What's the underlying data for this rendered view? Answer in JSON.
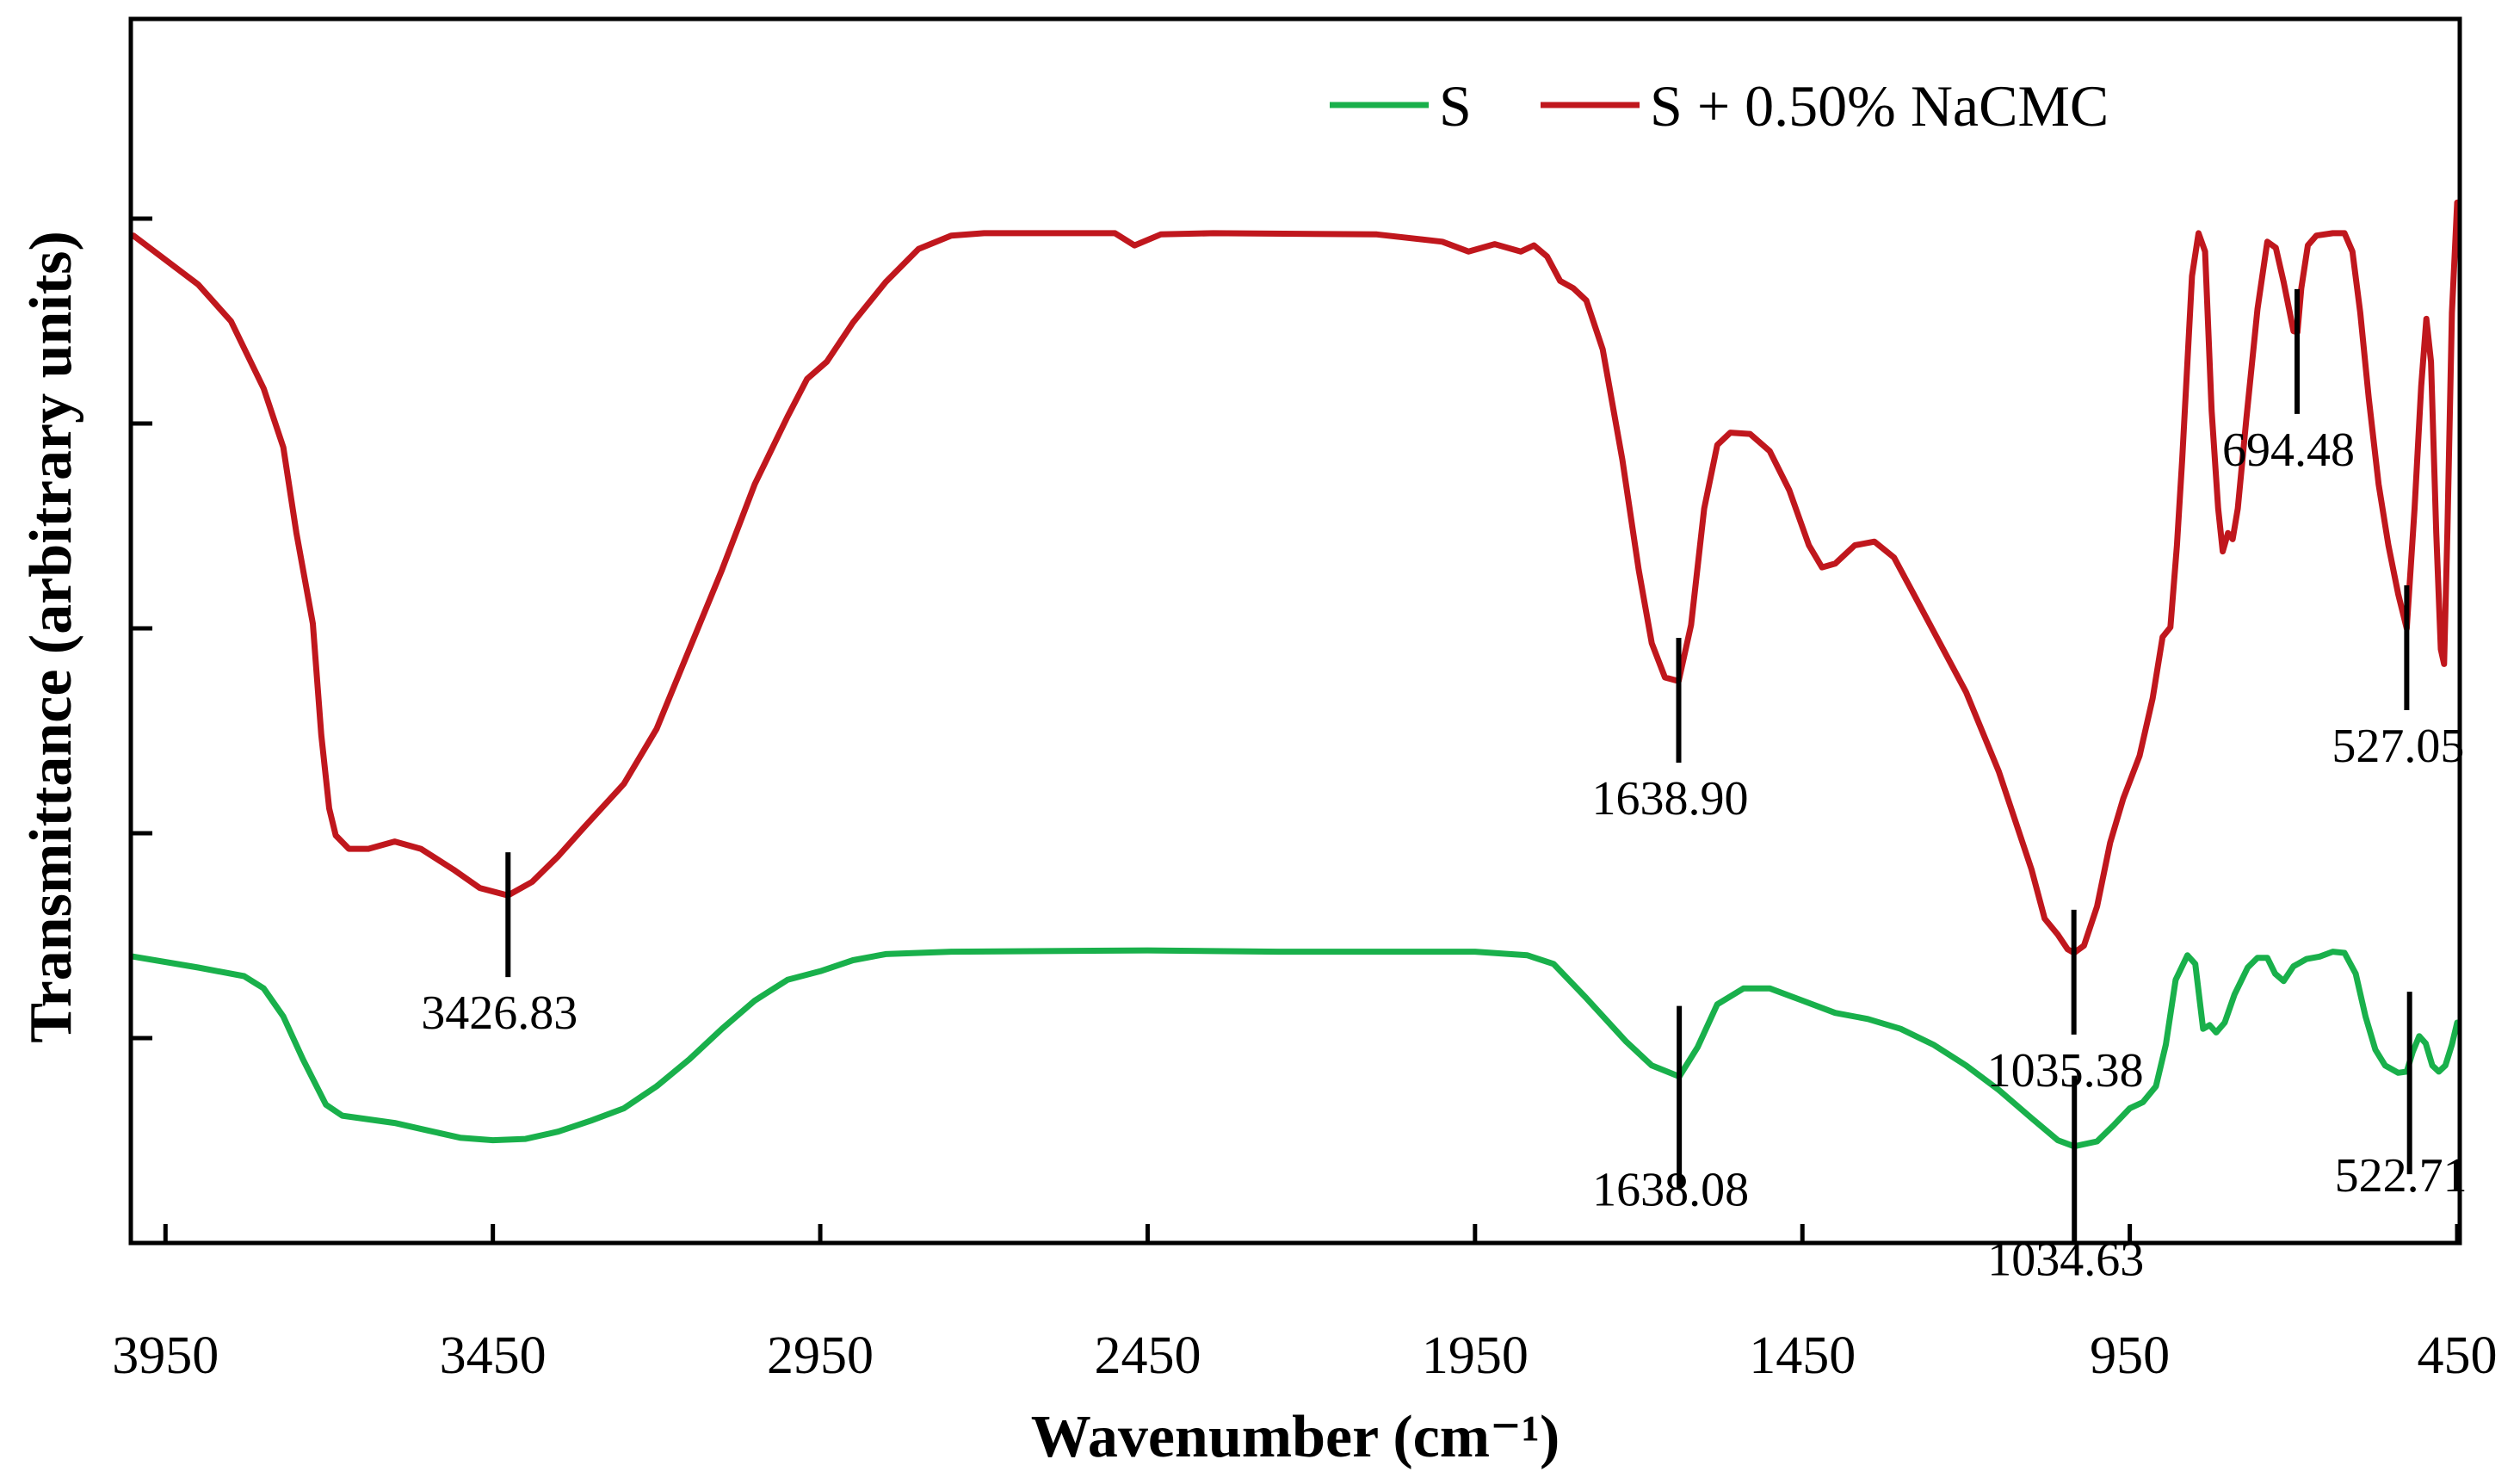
{
  "chart_data": {
    "type": "line",
    "title": "",
    "xlabel": "Wavenumber (cm⁻¹)",
    "ylabel": "Transmittance (arbitrary units)",
    "xlim": [
      3999,
      450
    ],
    "xaxis_reversed": true,
    "x_ticks": [
      "3950",
      "3450",
      "2950",
      "2450",
      "1950",
      "1450",
      "950",
      "450"
    ],
    "y_tick_count": 5,
    "ylim": [
      0,
      100
    ],
    "grid": false,
    "legend_position": "top-right",
    "series": [
      {
        "name": "S",
        "color": "#19b04b",
        "points": [
          [
            3999,
            23.4
          ],
          [
            3900,
            22.5
          ],
          [
            3830,
            21.8
          ],
          [
            3800,
            20.8
          ],
          [
            3770,
            18.5
          ],
          [
            3740,
            15.0
          ],
          [
            3705,
            11.3
          ],
          [
            3680,
            10.4
          ],
          [
            3600,
            9.8
          ],
          [
            3550,
            9.2
          ],
          [
            3500,
            8.6
          ],
          [
            3450,
            8.4
          ],
          [
            3400,
            8.5
          ],
          [
            3350,
            9.1
          ],
          [
            3300,
            10.0
          ],
          [
            3250,
            11.0
          ],
          [
            3200,
            12.8
          ],
          [
            3150,
            15.0
          ],
          [
            3100,
            17.5
          ],
          [
            3050,
            19.8
          ],
          [
            3000,
            21.5
          ],
          [
            2950,
            22.2
          ],
          [
            2900,
            23.1
          ],
          [
            2850,
            23.6
          ],
          [
            2750,
            23.8
          ],
          [
            2450,
            23.9
          ],
          [
            2250,
            23.8
          ],
          [
            2050,
            23.8
          ],
          [
            1950,
            23.8
          ],
          [
            1870,
            23.5
          ],
          [
            1830,
            22.8
          ],
          [
            1780,
            20.0
          ],
          [
            1720,
            16.5
          ],
          [
            1680,
            14.5
          ],
          [
            1638,
            13.6
          ],
          [
            1610,
            16.0
          ],
          [
            1580,
            19.5
          ],
          [
            1540,
            20.8
          ],
          [
            1500,
            20.8
          ],
          [
            1450,
            19.8
          ],
          [
            1400,
            18.8
          ],
          [
            1350,
            18.3
          ],
          [
            1300,
            17.5
          ],
          [
            1250,
            16.2
          ],
          [
            1200,
            14.5
          ],
          [
            1150,
            12.5
          ],
          [
            1100,
            10.2
          ],
          [
            1060,
            8.4
          ],
          [
            1035,
            7.9
          ],
          [
            1000,
            8.3
          ],
          [
            975,
            9.6
          ],
          [
            950,
            11.0
          ],
          [
            930,
            11.5
          ],
          [
            910,
            12.8
          ],
          [
            895,
            16.2
          ],
          [
            880,
            21.5
          ],
          [
            862,
            23.5
          ],
          [
            850,
            22.8
          ],
          [
            838,
            17.5
          ],
          [
            828,
            17.8
          ],
          [
            818,
            17.2
          ],
          [
            805,
            18.0
          ],
          [
            790,
            20.3
          ],
          [
            770,
            22.5
          ],
          [
            755,
            23.3
          ],
          [
            740,
            23.3
          ],
          [
            728,
            22.0
          ],
          [
            715,
            21.4
          ],
          [
            700,
            22.6
          ],
          [
            680,
            23.2
          ],
          [
            660,
            23.4
          ],
          [
            640,
            23.8
          ],
          [
            622,
            23.7
          ],
          [
            605,
            22.0
          ],
          [
            590,
            18.5
          ],
          [
            575,
            15.8
          ],
          [
            560,
            14.5
          ],
          [
            540,
            13.9
          ],
          [
            527,
            14.0
          ],
          [
            518,
            15.6
          ],
          [
            508,
            16.9
          ],
          [
            498,
            16.3
          ],
          [
            488,
            14.5
          ],
          [
            478,
            14.0
          ],
          [
            468,
            14.5
          ],
          [
            458,
            16.2
          ],
          [
            450,
            18.0
          ]
        ]
      },
      {
        "name": "S + 0.50% NaCMC",
        "color": "#c0171d",
        "points": [
          [
            3999,
            82.3
          ],
          [
            3900,
            78.3
          ],
          [
            3850,
            75.3
          ],
          [
            3800,
            69.8
          ],
          [
            3770,
            65.0
          ],
          [
            3750,
            58.0
          ],
          [
            3725,
            50.6
          ],
          [
            3712,
            41.5
          ],
          [
            3700,
            35.5
          ],
          [
            3690,
            33.3
          ],
          [
            3670,
            32.2
          ],
          [
            3640,
            32.2
          ],
          [
            3600,
            32.8
          ],
          [
            3560,
            32.2
          ],
          [
            3510,
            30.5
          ],
          [
            3470,
            29.0
          ],
          [
            3427,
            28.4
          ],
          [
            3390,
            29.5
          ],
          [
            3350,
            31.6
          ],
          [
            3310,
            34.0
          ],
          [
            3250,
            37.5
          ],
          [
            3200,
            42.0
          ],
          [
            3150,
            48.5
          ],
          [
            3100,
            55.0
          ],
          [
            3050,
            62.0
          ],
          [
            3000,
            67.5
          ],
          [
            2970,
            70.6
          ],
          [
            2940,
            72.0
          ],
          [
            2900,
            75.2
          ],
          [
            2850,
            78.5
          ],
          [
            2800,
            81.2
          ],
          [
            2750,
            82.3
          ],
          [
            2700,
            82.5
          ],
          [
            2600,
            82.5
          ],
          [
            2500,
            82.5
          ],
          [
            2470,
            81.5
          ],
          [
            2430,
            82.4
          ],
          [
            2350,
            82.5
          ],
          [
            2100,
            82.4
          ],
          [
            2000,
            81.8
          ],
          [
            1960,
            81.0
          ],
          [
            1920,
            81.6
          ],
          [
            1880,
            81.0
          ],
          [
            1860,
            81.5
          ],
          [
            1840,
            80.6
          ],
          [
            1820,
            78.6
          ],
          [
            1800,
            78.0
          ],
          [
            1780,
            77.0
          ],
          [
            1755,
            73.0
          ],
          [
            1725,
            64.0
          ],
          [
            1700,
            55.0
          ],
          [
            1680,
            49.0
          ],
          [
            1660,
            46.2
          ],
          [
            1639,
            45.9
          ],
          [
            1620,
            50.5
          ],
          [
            1600,
            60.0
          ],
          [
            1580,
            65.2
          ],
          [
            1560,
            66.2
          ],
          [
            1530,
            66.1
          ],
          [
            1500,
            64.7
          ],
          [
            1470,
            61.5
          ],
          [
            1440,
            57.0
          ],
          [
            1420,
            55.2
          ],
          [
            1400,
            55.5
          ],
          [
            1370,
            57.0
          ],
          [
            1340,
            57.3
          ],
          [
            1310,
            56.0
          ],
          [
            1280,
            53.0
          ],
          [
            1250,
            50.0
          ],
          [
            1200,
            45.0
          ],
          [
            1150,
            38.5
          ],
          [
            1100,
            30.5
          ],
          [
            1080,
            26.5
          ],
          [
            1060,
            25.2
          ],
          [
            1045,
            24.0
          ],
          [
            1035,
            23.7
          ],
          [
            1020,
            24.3
          ],
          [
            1000,
            27.5
          ],
          [
            980,
            32.7
          ],
          [
            960,
            36.3
          ],
          [
            935,
            39.8
          ],
          [
            915,
            44.5
          ],
          [
            900,
            49.5
          ],
          [
            888,
            50.3
          ],
          [
            878,
            57.0
          ],
          [
            870,
            64.0
          ],
          [
            862,
            72.0
          ],
          [
            855,
            79.0
          ],
          [
            845,
            82.5
          ],
          [
            835,
            81.0
          ],
          [
            825,
            68.0
          ],
          [
            815,
            60.0
          ],
          [
            808,
            56.5
          ],
          [
            800,
            58.0
          ],
          [
            793,
            57.5
          ],
          [
            785,
            60.0
          ],
          [
            772,
            67.3
          ],
          [
            755,
            76.3
          ],
          [
            740,
            81.8
          ],
          [
            727,
            81.3
          ],
          [
            715,
            78.5
          ],
          [
            700,
            74.5
          ],
          [
            694,
            74.4
          ],
          [
            688,
            78.0
          ],
          [
            678,
            81.5
          ],
          [
            665,
            82.3
          ],
          [
            640,
            82.5
          ],
          [
            622,
            82.5
          ],
          [
            610,
            81.0
          ],
          [
            598,
            76.0
          ],
          [
            585,
            69.0
          ],
          [
            570,
            62.0
          ],
          [
            555,
            57.0
          ],
          [
            540,
            53.0
          ],
          [
            527,
            50.2
          ],
          [
            515,
            60.0
          ],
          [
            505,
            70.0
          ],
          [
            497,
            75.5
          ],
          [
            490,
            72.0
          ],
          [
            482,
            58.0
          ],
          [
            475,
            48.5
          ],
          [
            470,
            47.3
          ],
          [
            465,
            58.0
          ],
          [
            458,
            76.0
          ],
          [
            450,
            85.0
          ]
        ]
      }
    ],
    "annotations": [
      {
        "label": "3426.83",
        "x": 3426.83,
        "series": "S + 0.50% NaCMC"
      },
      {
        "label": "1638.90",
        "x": 1638.9,
        "series": "S + 0.50% NaCMC"
      },
      {
        "label": "1035.38",
        "x": 1035.38,
        "series": "S + 0.50% NaCMC"
      },
      {
        "label": "694.48",
        "x": 694.48,
        "series": "S + 0.50% NaCMC"
      },
      {
        "label": "527.05",
        "x": 527.05,
        "series": "S + 0.50% NaCMC"
      },
      {
        "label": "1638.08",
        "x": 1638.08,
        "series": "S"
      },
      {
        "label": "1034.63",
        "x": 1034.63,
        "series": "S"
      },
      {
        "label": "522.71",
        "x": 522.71,
        "series": "S"
      }
    ]
  }
}
